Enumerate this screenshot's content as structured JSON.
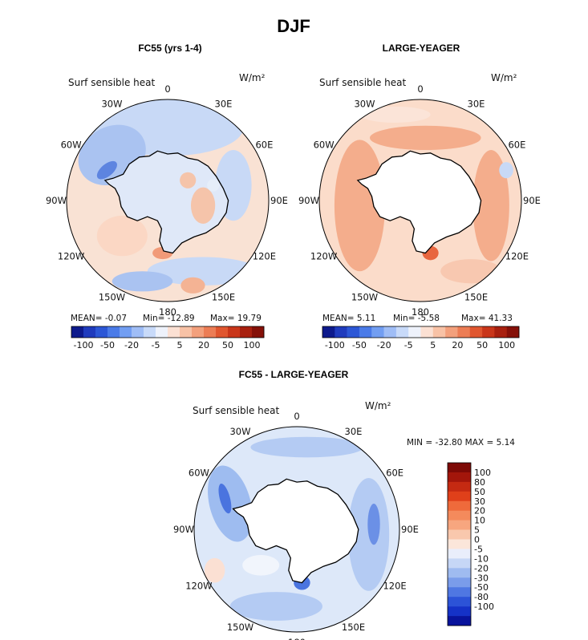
{
  "figure": {
    "title": "DJF",
    "variable_label": "Surf sensible heat",
    "units_label": "W/m²",
    "longitude_labels": {
      "top": "0",
      "upper_left": "30W",
      "upper_right": "30E",
      "left_upper": "60W",
      "right_upper": "60E",
      "left": "90W",
      "right": "90E",
      "left_lower": "120W",
      "right_lower": "120E",
      "lower_left": "150W",
      "lower_right": "150E",
      "bottom": "180"
    }
  },
  "chart_data": [
    {
      "type": "heatmap",
      "projection": "south-polar-stereographic",
      "title": "FC55 (yrs 1-4)",
      "variable": "Surf sensible heat",
      "units": "W/m²",
      "stats": {
        "mean": -0.07,
        "min": -12.89,
        "max": 19.79
      },
      "stats_text": {
        "mean": "MEAN=  -0.07",
        "min": "Min=  -12.89",
        "max": "Max=  19.79"
      },
      "colorbar_ticks": [
        "-100",
        "-50",
        "-20",
        "-5",
        "5",
        "20",
        "50",
        "100"
      ],
      "colorbar_colors": [
        "#0d1a8c",
        "#1f3bbd",
        "#2c57d6",
        "#4a7be8",
        "#729ef2",
        "#9fbdf6",
        "#c8daf9",
        "#eef2fb",
        "#fbe0d3",
        "#f8c2a6",
        "#f3a07c",
        "#ec7d55",
        "#e0562f",
        "#c9361a",
        "#a8200f",
        "#851008"
      ]
    },
    {
      "type": "heatmap",
      "projection": "south-polar-stereographic",
      "title": "LARGE-YEAGER",
      "variable": "Surf sensible heat",
      "units": "W/m²",
      "stats": {
        "mean": 5.11,
        "min": -5.58,
        "max": 41.33
      },
      "stats_text": {
        "mean": "MEAN=  5.11",
        "min": "Min=  -5.58",
        "max": "Max=  41.33"
      },
      "colorbar_ticks": [
        "-100",
        "-50",
        "-20",
        "-5",
        "5",
        "20",
        "50",
        "100"
      ],
      "colorbar_colors": [
        "#0d1a8c",
        "#1f3bbd",
        "#2c57d6",
        "#4a7be8",
        "#729ef2",
        "#9fbdf6",
        "#c8daf9",
        "#eef2fb",
        "#fbe0d3",
        "#f8c2a6",
        "#f3a07c",
        "#ec7d55",
        "#e0562f",
        "#c9361a",
        "#a8200f",
        "#851008"
      ]
    },
    {
      "type": "heatmap",
      "projection": "south-polar-stereographic",
      "title": "FC55 - LARGE-YEAGER",
      "variable": "Surf sensible heat",
      "units": "W/m²",
      "stats": {
        "min": -32.8,
        "max": 5.14
      },
      "stats_text": "MIN = -32.80 MAX =    5.14",
      "colorbar_levels": [
        "100",
        "80",
        "50",
        "30",
        "20",
        "10",
        "5",
        "0",
        "-5",
        "-10",
        "-20",
        "-30",
        "-50",
        "-80",
        "-100"
      ],
      "colorbar_colors": [
        "#7d0a06",
        "#a3160b",
        "#c52a12",
        "#e0401a",
        "#ef6a3b",
        "#f48a5c",
        "#f7a67f",
        "#f9c8ad",
        "#fbe6da",
        "#e9eefb",
        "#c6d7f6",
        "#9fbbf0",
        "#7a9cea",
        "#4f77e2",
        "#2c53d7",
        "#1532c7",
        "#08139c"
      ]
    }
  ]
}
